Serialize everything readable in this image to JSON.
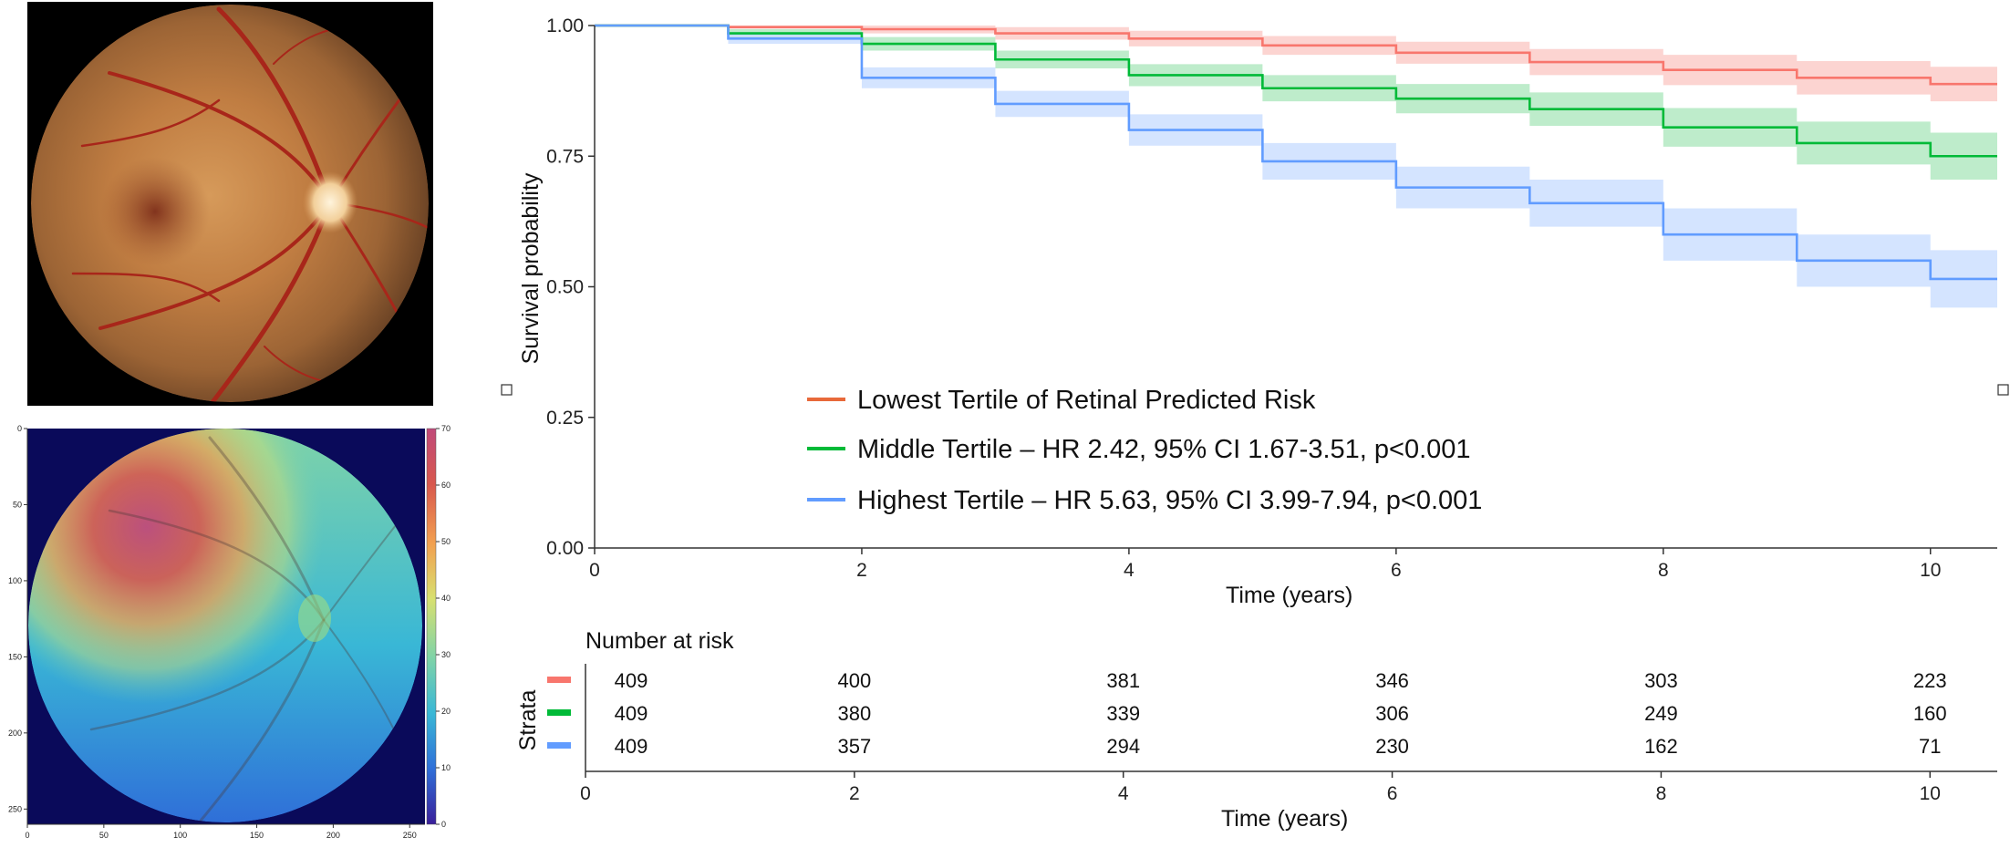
{
  "fundus_photo": {
    "depicts": "color retinal fundus photograph"
  },
  "saliency_map": {
    "depicts": "retinal fundus with overlaid attention heatmap",
    "colormap": [
      "#3a1f9a",
      "#2f6fd8",
      "#39b7d6",
      "#7fd3a8",
      "#d8e070",
      "#f2a050",
      "#d8584e",
      "#c04a7a"
    ],
    "x_ticks": [
      "0",
      "50",
      "100",
      "150",
      "200",
      "250"
    ],
    "y_ticks": [
      "0",
      "50",
      "100",
      "150",
      "200",
      "250"
    ],
    "colorbar_ticks": [
      "0",
      "10",
      "20",
      "30",
      "40",
      "50",
      "60",
      "70"
    ]
  },
  "chart_data": [
    {
      "type": "line",
      "xlabel": "Time (years)",
      "ylabel": "Survival probability",
      "xlim": [
        0,
        10.5
      ],
      "ylim": [
        0,
        1
      ],
      "x_ticks": [
        "0",
        "2",
        "4",
        "6",
        "8",
        "10"
      ],
      "y_ticks": [
        "0.00",
        "0.25",
        "0.50",
        "0.75",
        "1.00"
      ],
      "grid": false,
      "legend_position": "center",
      "series": [
        {
          "name": "Lowest Tertile of Retinal Predicted Risk",
          "color": "#f8766d",
          "ci_color": "#fbc5c1",
          "x": [
            0,
            1,
            2,
            3,
            4,
            5,
            6,
            7,
            8,
            9,
            10,
            10.5
          ],
          "y": [
            1.0,
            0.997,
            0.993,
            0.985,
            0.975,
            0.962,
            0.948,
            0.93,
            0.915,
            0.9,
            0.888,
            0.888
          ],
          "ci_low": [
            1.0,
            0.994,
            0.985,
            0.973,
            0.96,
            0.944,
            0.927,
            0.905,
            0.886,
            0.868,
            0.855,
            0.855
          ],
          "ci_high": [
            1.0,
            1.0,
            1.0,
            0.997,
            0.99,
            0.98,
            0.969,
            0.955,
            0.944,
            0.932,
            0.921,
            0.921
          ]
        },
        {
          "name": "Middle Tertile – HR 2.42, 95% CI 1.67-3.51, p<0.001",
          "color": "#00ba38",
          "ci_color": "#a8e6b9",
          "x": [
            0,
            1,
            2,
            3,
            4,
            5,
            6,
            7,
            8,
            9,
            10,
            10.5
          ],
          "y": [
            1.0,
            0.985,
            0.965,
            0.935,
            0.905,
            0.88,
            0.86,
            0.84,
            0.805,
            0.775,
            0.75,
            0.75
          ],
          "ci_low": [
            1.0,
            0.977,
            0.952,
            0.918,
            0.884,
            0.855,
            0.832,
            0.808,
            0.768,
            0.734,
            0.705,
            0.705
          ],
          "ci_high": [
            1.0,
            0.993,
            0.978,
            0.952,
            0.926,
            0.905,
            0.888,
            0.872,
            0.842,
            0.816,
            0.795,
            0.795
          ]
        },
        {
          "name": "Highest Tertile – HR 5.63, 95% CI 3.99-7.94, p<0.001",
          "color": "#619cff",
          "ci_color": "#c6dbff",
          "x": [
            0,
            1,
            2,
            3,
            4,
            5,
            6,
            7,
            8,
            9,
            10,
            10.5
          ],
          "y": [
            1.0,
            0.975,
            0.9,
            0.85,
            0.8,
            0.74,
            0.69,
            0.66,
            0.6,
            0.55,
            0.515,
            0.515
          ],
          "ci_low": [
            1.0,
            0.965,
            0.88,
            0.825,
            0.77,
            0.705,
            0.65,
            0.615,
            0.55,
            0.5,
            0.46,
            0.46
          ],
          "ci_high": [
            1.0,
            0.985,
            0.92,
            0.875,
            0.83,
            0.775,
            0.73,
            0.705,
            0.65,
            0.6,
            0.57,
            0.57
          ]
        }
      ]
    },
    {
      "type": "table",
      "title": "Number at risk",
      "ylabel": "Strata",
      "xlabel": "Time (years)",
      "x": [
        0,
        2,
        4,
        6,
        8,
        10
      ],
      "x_ticks": [
        "0",
        "2",
        "4",
        "6",
        "8",
        "10"
      ],
      "rows": [
        {
          "color": "#f8766d",
          "values": [
            409,
            400,
            381,
            346,
            303,
            223
          ]
        },
        {
          "color": "#00ba38",
          "values": [
            409,
            380,
            339,
            306,
            249,
            160
          ]
        },
        {
          "color": "#619cff",
          "values": [
            409,
            357,
            294,
            230,
            162,
            71
          ]
        }
      ]
    }
  ]
}
